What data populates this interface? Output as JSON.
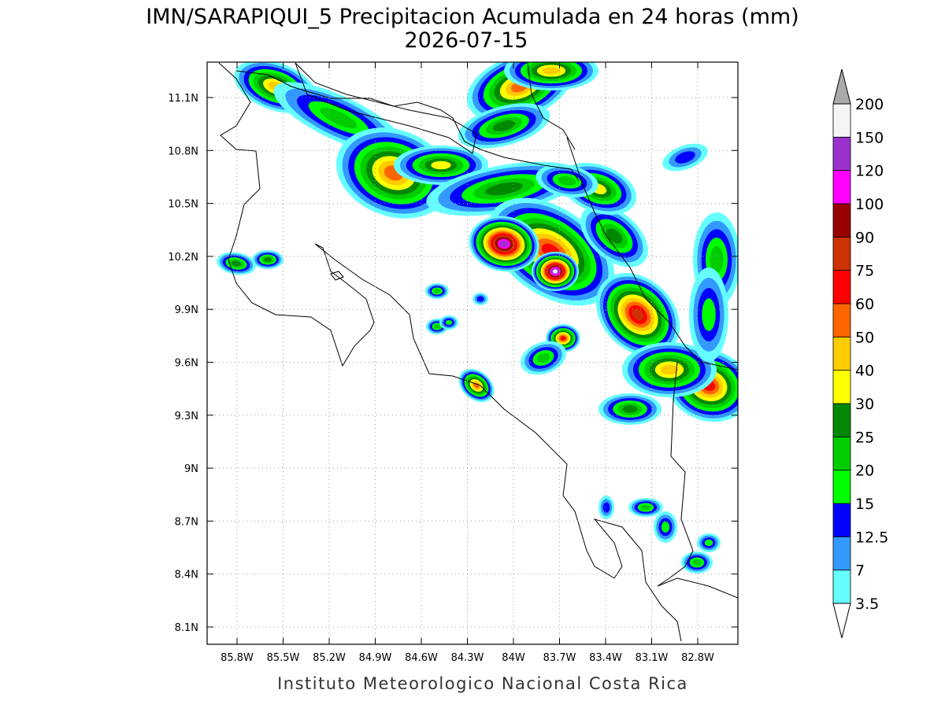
{
  "map": {
    "title": "IMN/SARAPIQUI_5 Precipitacion Acumulada en 24 horas (mm)",
    "date": "2026-07-15",
    "lon_ticks": [
      "85.8W",
      "85.5W",
      "85.2W",
      "84.9W",
      "84.6W",
      "84.3W",
      "84W",
      "83.7W",
      "83.4W",
      "83.1W",
      "82.8W"
    ],
    "lat_ticks": [
      "11.1N",
      "10.8N",
      "10.5N",
      "10.2N",
      "9.9N",
      "9.6N",
      "9.3N",
      "9N",
      "8.7N",
      "8.4N",
      "8.1N"
    ],
    "colorbar": {
      "levels": [
        3.5,
        7,
        12.5,
        15,
        20,
        25,
        30,
        40,
        50,
        60,
        75,
        90,
        100,
        120,
        150,
        200
      ],
      "colors": [
        "#66ffff",
        "#3399ff",
        "#0000ff",
        "#00ff00",
        "#00cc00",
        "#008800",
        "#ffff00",
        "#ffcc00",
        "#ff6600",
        "#ff0000",
        "#cc3300",
        "#990000",
        "#ff00ff",
        "#9933cc",
        "#f5f5f5"
      ],
      "under_color": "#ffffff",
      "over_color": "#aaaaaa"
    },
    "footer": "Instituto Meteorologico Nacional Costa Rica"
  }
}
